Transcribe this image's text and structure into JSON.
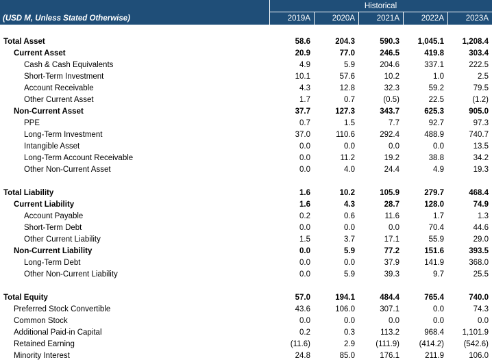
{
  "header": {
    "group_label": "Historical",
    "units_label": "(USD M, Unless Stated Otherwise)",
    "years": [
      "2019A",
      "2020A",
      "2021A",
      "2022A",
      "2023A"
    ]
  },
  "sections": [
    {
      "rows": [
        {
          "label": "Total Asset",
          "style": "total",
          "values": [
            "58.6",
            "204.3",
            "590.3",
            "1,045.1",
            "1,208.4"
          ]
        },
        {
          "label": "Current Asset",
          "style": "subtotal",
          "values": [
            "20.9",
            "77.0",
            "246.5",
            "419.8",
            "303.4"
          ]
        },
        {
          "label": "Cash & Cash Equivalents",
          "style": "item",
          "values": [
            "4.9",
            "5.9",
            "204.6",
            "337.1",
            "222.5"
          ]
        },
        {
          "label": "Short-Term Investment",
          "style": "item",
          "values": [
            "10.1",
            "57.6",
            "10.2",
            "1.0",
            "2.5"
          ]
        },
        {
          "label": "Account Receivable",
          "style": "item",
          "values": [
            "4.3",
            "12.8",
            "32.3",
            "59.2",
            "79.5"
          ]
        },
        {
          "label": "Other Current Asset",
          "style": "item",
          "values": [
            "1.7",
            "0.7",
            "(0.5)",
            "22.5",
            "(1.2)"
          ]
        },
        {
          "label": "Non-Current Asset",
          "style": "subtotal",
          "values": [
            "37.7",
            "127.3",
            "343.7",
            "625.3",
            "905.0"
          ]
        },
        {
          "label": "PPE",
          "style": "item",
          "values": [
            "0.7",
            "1.5",
            "7.7",
            "92.7",
            "97.3"
          ]
        },
        {
          "label": "Long-Term Investment",
          "style": "item",
          "values": [
            "37.0",
            "110.6",
            "292.4",
            "488.9",
            "740.7"
          ]
        },
        {
          "label": "Intangible Asset",
          "style": "item",
          "values": [
            "0.0",
            "0.0",
            "0.0",
            "0.0",
            "13.5"
          ]
        },
        {
          "label": "Long-Term Account Receivable",
          "style": "item",
          "values": [
            "0.0",
            "11.2",
            "19.2",
            "38.8",
            "34.2"
          ]
        },
        {
          "label": "Other Non-Current Asset",
          "style": "item",
          "values": [
            "0.0",
            "4.0",
            "24.4",
            "4.9",
            "19.3"
          ]
        }
      ]
    },
    {
      "rows": [
        {
          "label": "Total Liability",
          "style": "total",
          "values": [
            "1.6",
            "10.2",
            "105.9",
            "279.7",
            "468.4"
          ]
        },
        {
          "label": "Current Liability",
          "style": "subtotal",
          "values": [
            "1.6",
            "4.3",
            "28.7",
            "128.0",
            "74.9"
          ]
        },
        {
          "label": "Account Payable",
          "style": "item",
          "values": [
            "0.2",
            "0.6",
            "11.6",
            "1.7",
            "1.3"
          ]
        },
        {
          "label": "Short-Term Debt",
          "style": "item",
          "values": [
            "0.0",
            "0.0",
            "0.0",
            "70.4",
            "44.6"
          ]
        },
        {
          "label": "Other Current Liability",
          "style": "item",
          "values": [
            "1.5",
            "3.7",
            "17.1",
            "55.9",
            "29.0"
          ]
        },
        {
          "label": "Non-Current Liability",
          "style": "subtotal",
          "values": [
            "0.0",
            "5.9",
            "77.2",
            "151.6",
            "393.5"
          ]
        },
        {
          "label": "Long-Term Debt",
          "style": "item",
          "values": [
            "0.0",
            "0.0",
            "37.9",
            "141.9",
            "368.0"
          ]
        },
        {
          "label": "Other Non-Current Liability",
          "style": "item",
          "values": [
            "0.0",
            "5.9",
            "39.3",
            "9.7",
            "25.5"
          ]
        }
      ]
    },
    {
      "rows": [
        {
          "label": "Total Equity",
          "style": "total",
          "values": [
            "57.0",
            "194.1",
            "484.4",
            "765.4",
            "740.0"
          ]
        },
        {
          "label": "Preferred Stock Convertible",
          "style": "subitem",
          "values": [
            "43.6",
            "106.0",
            "307.1",
            "0.0",
            "74.3"
          ]
        },
        {
          "label": "Common Stock",
          "style": "subitem",
          "values": [
            "0.0",
            "0.0",
            "0.0",
            "0.0",
            "0.0"
          ]
        },
        {
          "label": "Additional Paid-in Capital",
          "style": "subitem",
          "values": [
            "0.2",
            "0.3",
            "113.2",
            "968.4",
            "1,101.9"
          ]
        },
        {
          "label": "Retained Earning",
          "style": "subitem",
          "values": [
            "(11.6)",
            "2.9",
            "(111.9)",
            "(414.2)",
            "(542.6)"
          ]
        },
        {
          "label": "Minority Interest",
          "style": "subitem",
          "values": [
            "24.8",
            "85.0",
            "176.1",
            "211.9",
            "106.0"
          ]
        }
      ]
    }
  ]
}
